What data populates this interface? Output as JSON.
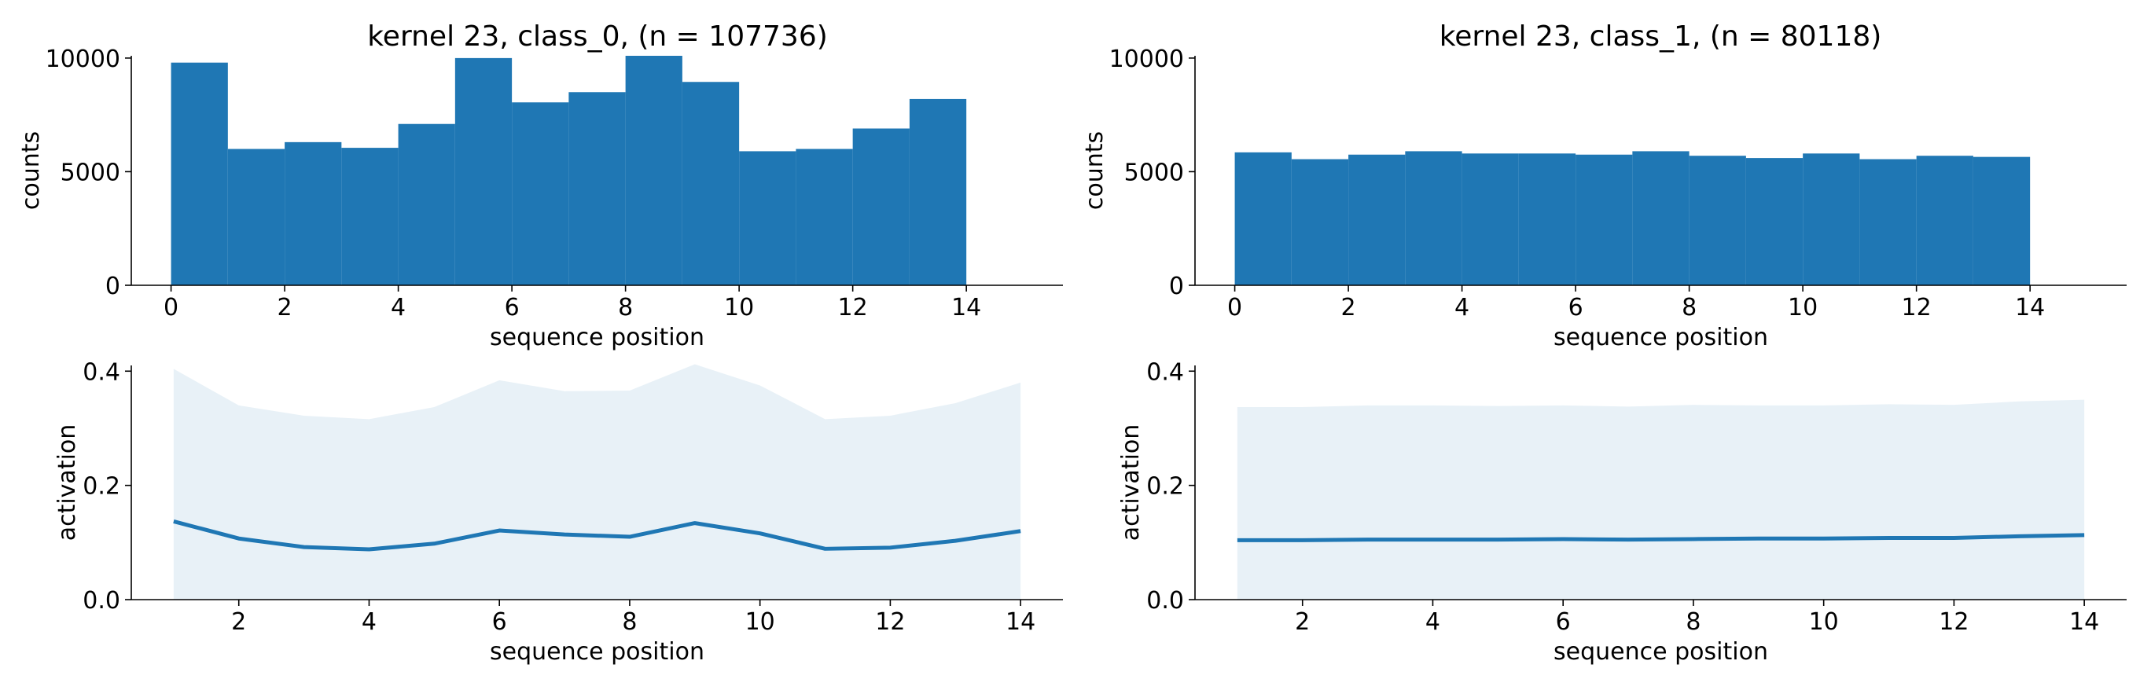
{
  "chart_data": [
    {
      "id": "p0",
      "type": "bar",
      "title": "kernel 23, class_0, (n = 107736)",
      "xlabel": "sequence position",
      "ylabel": "counts",
      "bin_edges": [
        0,
        1,
        2,
        3,
        4,
        5,
        6,
        7,
        8,
        9,
        10,
        11,
        12,
        13,
        14
      ],
      "values": [
        9800,
        6000,
        6300,
        6050,
        7100,
        10000,
        8050,
        8500,
        10100,
        8950,
        5900,
        6000,
        6900,
        8200
      ],
      "xlim": [
        -0.7,
        15.7
      ],
      "ylim": [
        0,
        10100
      ],
      "xticks": [
        0,
        2,
        4,
        6,
        8,
        10,
        12,
        14
      ],
      "xtick_labels": [
        "0",
        "2",
        "4",
        "6",
        "8",
        "10",
        "12",
        "14"
      ],
      "yticks": [
        0,
        5000,
        10000
      ],
      "ytick_labels": [
        "0",
        "5000",
        "10000"
      ]
    },
    {
      "id": "p1",
      "type": "bar",
      "title": "kernel 23, class_1, (n = 80118)",
      "xlabel": "sequence position",
      "ylabel": "counts",
      "bin_edges": [
        0,
        1,
        2,
        3,
        4,
        5,
        6,
        7,
        8,
        9,
        10,
        11,
        12,
        13,
        14
      ],
      "values": [
        5850,
        5550,
        5750,
        5900,
        5800,
        5800,
        5750,
        5900,
        5700,
        5600,
        5800,
        5550,
        5700,
        5650
      ],
      "xlim": [
        -0.7,
        15.7
      ],
      "ylim": [
        0,
        10100
      ],
      "xticks": [
        0,
        2,
        4,
        6,
        8,
        10,
        12,
        14
      ],
      "xtick_labels": [
        "0",
        "2",
        "4",
        "6",
        "8",
        "10",
        "12",
        "14"
      ],
      "yticks": [
        0,
        5000,
        10000
      ],
      "ytick_labels": [
        "0",
        "5000",
        "10000"
      ]
    },
    {
      "id": "p2",
      "type": "area",
      "title": "",
      "xlabel": "sequence position",
      "ylabel": "activation",
      "x": [
        1,
        2,
        3,
        4,
        5,
        6,
        7,
        8,
        9,
        10,
        11,
        12,
        13,
        14
      ],
      "mean": [
        0.137,
        0.107,
        0.092,
        0.088,
        0.098,
        0.121,
        0.114,
        0.11,
        0.134,
        0.116,
        0.089,
        0.091,
        0.103,
        0.12
      ],
      "upper": [
        0.404,
        0.34,
        0.322,
        0.316,
        0.337,
        0.384,
        0.365,
        0.366,
        0.412,
        0.375,
        0.316,
        0.322,
        0.344,
        0.38
      ],
      "lower": [
        0,
        0,
        0,
        0,
        0,
        0,
        0,
        0,
        0,
        0,
        0,
        0,
        0,
        0
      ],
      "xlim": [
        0.35,
        14.65
      ],
      "ylim": [
        0,
        0.41
      ],
      "xticks": [
        2,
        4,
        6,
        8,
        10,
        12,
        14
      ],
      "xtick_labels": [
        "2",
        "4",
        "6",
        "8",
        "10",
        "12",
        "14"
      ],
      "yticks": [
        0.0,
        0.2,
        0.4
      ],
      "ytick_labels": [
        "0.0",
        "0.2",
        "0.4"
      ]
    },
    {
      "id": "p3",
      "type": "area",
      "title": "",
      "xlabel": "sequence position",
      "ylabel": "activation",
      "x": [
        1,
        2,
        3,
        4,
        5,
        6,
        7,
        8,
        9,
        10,
        11,
        12,
        13,
        14
      ],
      "mean": [
        0.104,
        0.104,
        0.105,
        0.105,
        0.105,
        0.106,
        0.105,
        0.106,
        0.107,
        0.107,
        0.108,
        0.108,
        0.111,
        0.113
      ],
      "upper": [
        0.337,
        0.337,
        0.34,
        0.34,
        0.339,
        0.34,
        0.338,
        0.341,
        0.34,
        0.34,
        0.342,
        0.341,
        0.347,
        0.35
      ],
      "lower": [
        0,
        0,
        0,
        0,
        0,
        0,
        0,
        0,
        0,
        0,
        0,
        0,
        0,
        0
      ],
      "xlim": [
        0.35,
        14.65
      ],
      "ylim": [
        0,
        0.41
      ],
      "xticks": [
        2,
        4,
        6,
        8,
        10,
        12,
        14
      ],
      "xtick_labels": [
        "2",
        "4",
        "6",
        "8",
        "10",
        "12",
        "14"
      ],
      "yticks": [
        0.0,
        0.2,
        0.4
      ],
      "ytick_labels": [
        "0.0",
        "0.2",
        "0.4"
      ]
    }
  ]
}
